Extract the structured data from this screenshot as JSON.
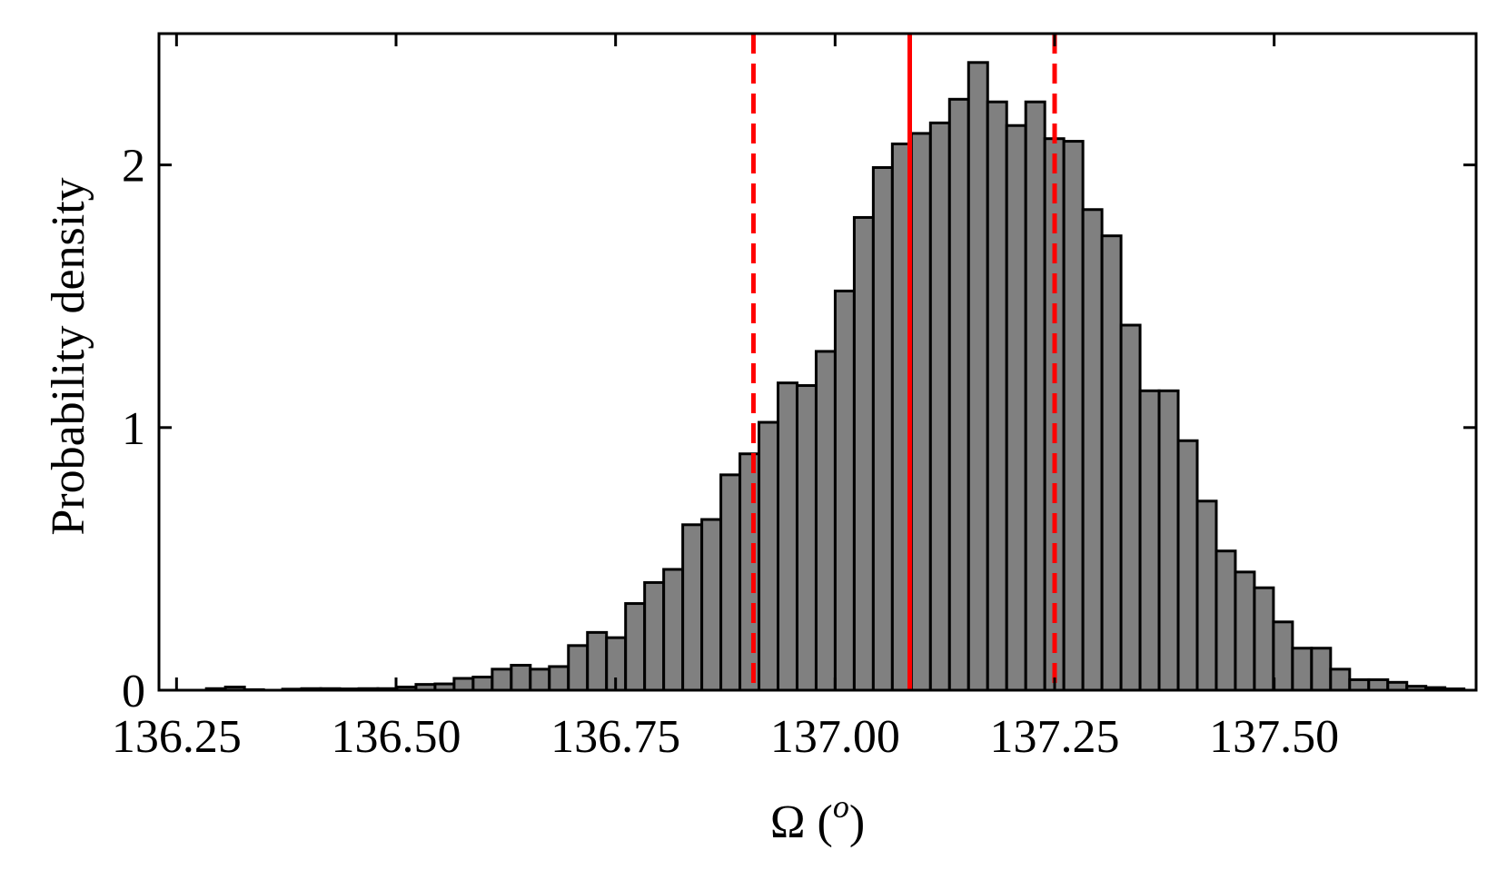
{
  "chart_data": {
    "type": "bar",
    "xlabel": "Ω (",
    "xlabel_sup": "o",
    "xlabel_close": ")",
    "ylabel": "Probability density",
    "xlim": [
      136.23,
      137.73
    ],
    "ylim": [
      0,
      2.5
    ],
    "x_ticks": [
      136.25,
      136.5,
      136.75,
      137.0,
      137.25,
      137.5
    ],
    "x_tick_labels": [
      "136.25",
      "136.50",
      "136.75",
      "137.00",
      "137.25",
      "137.50"
    ],
    "y_ticks": [
      0,
      1,
      2
    ],
    "y_tick_labels": [
      "0",
      "1",
      "2"
    ],
    "bin_start": 136.284,
    "bin_width": 0.0217,
    "values": [
      0.006,
      0.012,
      0.002,
      0.0,
      0.004,
      0.006,
      0.006,
      0.005,
      0.006,
      0.006,
      0.012,
      0.022,
      0.024,
      0.045,
      0.05,
      0.08,
      0.095,
      0.08,
      0.09,
      0.17,
      0.22,
      0.2,
      0.33,
      0.41,
      0.46,
      0.63,
      0.65,
      0.82,
      0.9,
      1.02,
      1.17,
      1.16,
      1.29,
      1.52,
      1.8,
      1.99,
      2.08,
      2.12,
      2.16,
      2.25,
      2.39,
      2.24,
      2.15,
      2.24,
      2.1,
      2.09,
      1.83,
      1.73,
      1.39,
      1.14,
      1.14,
      0.95,
      0.72,
      0.53,
      0.45,
      0.39,
      0.26,
      0.16,
      0.16,
      0.08,
      0.04,
      0.04,
      0.03,
      0.015,
      0.01,
      0.005
    ],
    "bar_fill": "#808080",
    "bar_edge": "#000000",
    "reference_lines": [
      {
        "x": 136.907,
        "style": "dashed",
        "color": "#ff0000"
      },
      {
        "x": 137.085,
        "style": "solid",
        "color": "#ff0000"
      },
      {
        "x": 137.25,
        "style": "dashed",
        "color": "#ff0000"
      }
    ],
    "grid": false,
    "legend": "none"
  }
}
